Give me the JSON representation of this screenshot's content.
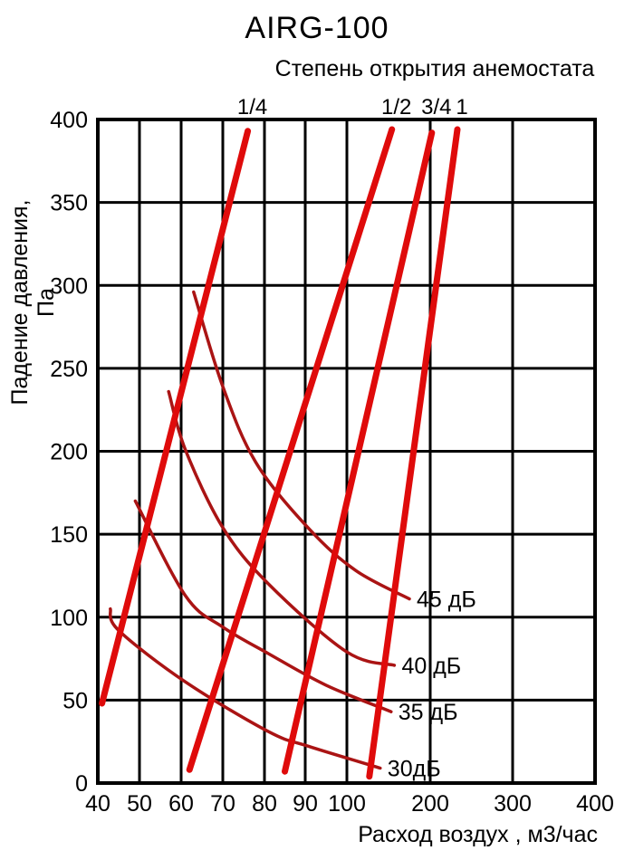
{
  "title": "AIRG-100",
  "subtitle": "Степень открытия анемостата",
  "chart_data": {
    "type": "line",
    "title": "AIRG-100",
    "subtitle": "Степень открытия анемостата",
    "xlabel": "Расход воздух , м3/час",
    "ylabel": "Падение давления, Па",
    "x_axis": {
      "scale": "pseudo-log",
      "ticks": [
        40,
        50,
        60,
        70,
        80,
        90,
        100,
        200,
        300,
        400
      ],
      "range": [
        40,
        400
      ]
    },
    "y_axis": {
      "scale": "linear",
      "ticks": [
        0,
        50,
        100,
        150,
        200,
        250,
        300,
        350,
        400
      ],
      "range": [
        0,
        400
      ]
    },
    "grid": true,
    "legend_position": "none",
    "opening_lines": [
      {
        "label": "1/4",
        "points": [
          [
            41,
            48
          ],
          [
            76,
            393
          ]
        ]
      },
      {
        "label": "1/2",
        "points": [
          [
            62,
            8
          ],
          [
            154,
            394
          ]
        ]
      },
      {
        "label": "3/4",
        "points": [
          [
            85,
            7
          ],
          [
            202,
            392
          ]
        ]
      },
      {
        "label": "1",
        "points": [
          [
            127,
            4
          ],
          [
            233,
            394
          ]
        ]
      }
    ],
    "noise_curves": [
      {
        "label": "45 дБ",
        "points": [
          [
            63,
            296
          ],
          [
            70,
            239
          ],
          [
            78,
            193
          ],
          [
            91,
            153
          ],
          [
            111,
            128
          ],
          [
            175,
            111
          ]
        ]
      },
      {
        "label": "40 дБ",
        "points": [
          [
            57,
            236
          ],
          [
            61,
            201
          ],
          [
            70,
            154
          ],
          [
            81,
            120
          ],
          [
            100,
            79
          ],
          [
            157,
            71
          ]
        ]
      },
      {
        "label": "35 дБ",
        "points": [
          [
            49,
            170
          ],
          [
            61,
            113
          ],
          [
            70,
            94
          ],
          [
            81,
            78
          ],
          [
            95,
            59
          ],
          [
            153,
            43
          ]
        ]
      },
      {
        "label": "30дБ",
        "points": [
          [
            43,
            105
          ],
          [
            45,
            92
          ],
          [
            61,
            61
          ],
          [
            81,
            31
          ],
          [
            91,
            22
          ],
          [
            140,
            9
          ]
        ]
      }
    ],
    "colors": {
      "opening_line": "#df0b0b",
      "noise_curve": "#aa1414",
      "grid": "#000000",
      "text": "#000000",
      "background": "#ffffff"
    }
  }
}
